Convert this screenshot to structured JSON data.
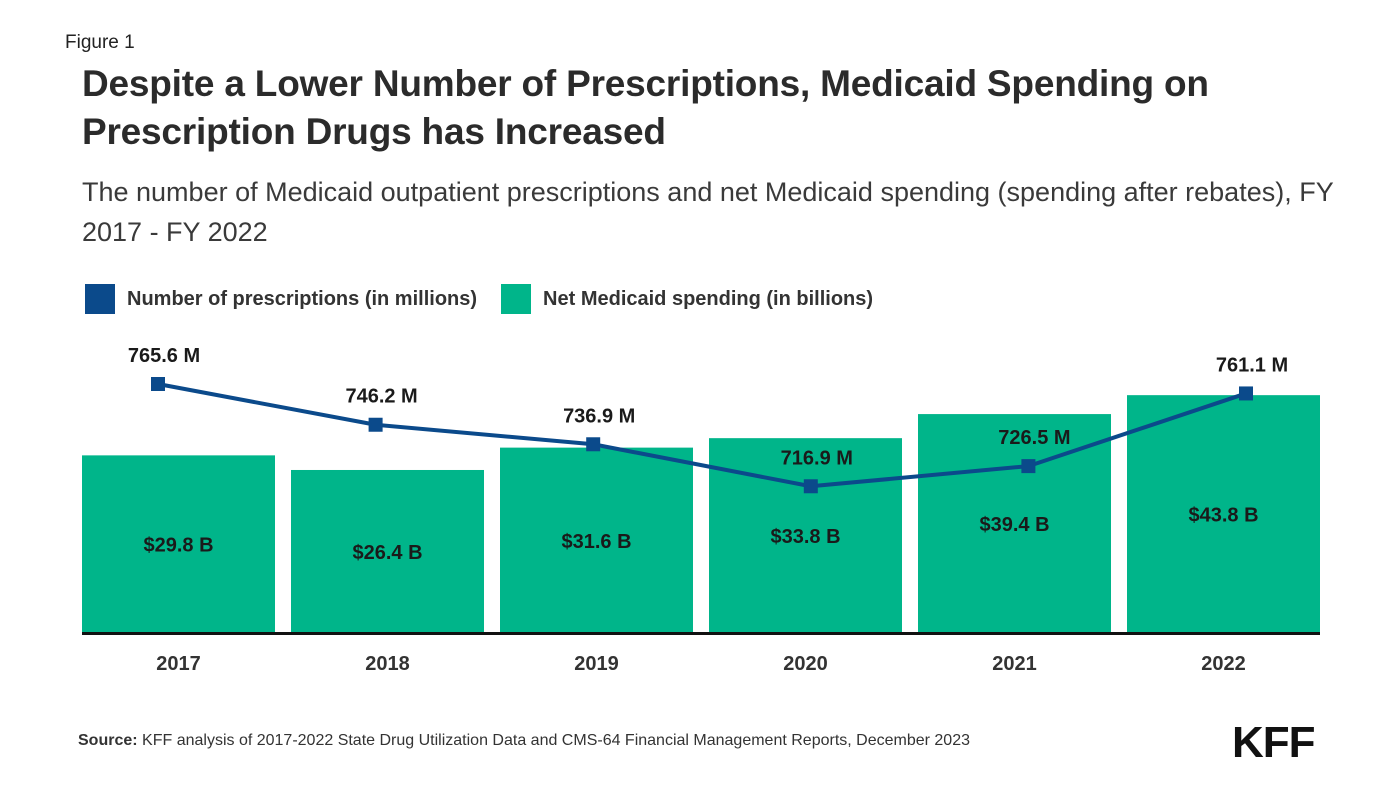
{
  "figure_label": "Figure 1",
  "source_label": "Source:",
  "source_text": " KFF analysis of 2017-2022 State Drug Utilization Data and CMS-64 Financial Management Reports, December 2023",
  "logo_text": "KFF",
  "colors": {
    "line": "#0b4a8b",
    "bar": "#00b58a",
    "axis": "#111111"
  },
  "chart_data": {
    "type": "bar",
    "title": "Despite a Lower Number of Prescriptions, Medicaid Spending on Prescription Drugs has Increased",
    "subtitle": "The number of Medicaid outpatient prescriptions and net Medicaid spending (spending after rebates), FY 2017 - FY 2022",
    "categories": [
      "2017",
      "2018",
      "2019",
      "2020",
      "2021",
      "2022"
    ],
    "legend_position": "top-left",
    "grid": false,
    "series": [
      {
        "name": "Number of prescriptions (in millions)",
        "type": "line",
        "values": [
          765.6,
          746.2,
          736.9,
          716.9,
          726.5,
          761.1
        ],
        "labels": [
          "765.6 M",
          "746.2 M",
          "736.9 M",
          "716.9 M",
          "726.5 M",
          "761.1 M"
        ]
      },
      {
        "name": "Net Medicaid spending (in billions)",
        "type": "bar",
        "values": [
          29.8,
          26.4,
          31.6,
          33.8,
          39.4,
          43.8
        ],
        "labels": [
          "$29.8 B",
          "$26.4 B",
          "$31.6 B",
          "$33.8 B",
          "$39.4 B",
          "$43.8 B"
        ]
      }
    ]
  }
}
